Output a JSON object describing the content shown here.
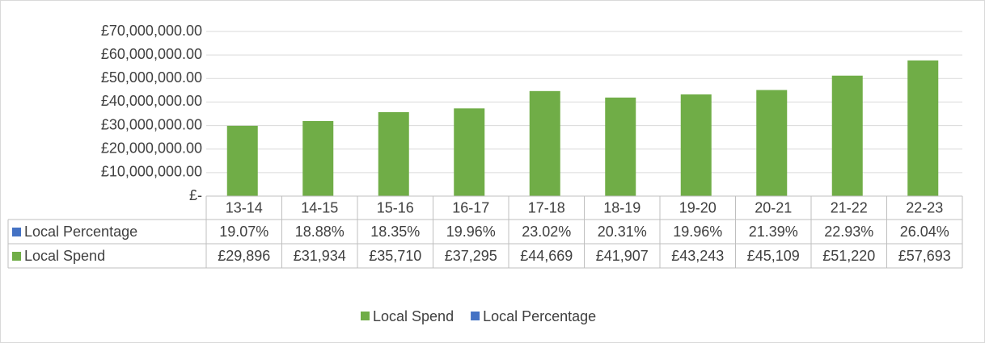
{
  "chart_data": {
    "type": "bar",
    "categories": [
      "13-14",
      "14-15",
      "15-16",
      "16-17",
      "17-18",
      "18-19",
      "19-20",
      "20-21",
      "21-22",
      "22-23"
    ],
    "series": [
      {
        "name": "Local Percentage",
        "color": "#4472c4",
        "values": [
          19.07,
          18.88,
          18.35,
          19.96,
          23.02,
          20.31,
          19.96,
          21.39,
          22.93,
          26.04
        ],
        "value_labels": [
          "19.07%",
          "18.88%",
          "18.35%",
          "19.96%",
          "23.02%",
          "20.31%",
          "19.96%",
          "21.39%",
          "22.93%",
          "26.04%"
        ]
      },
      {
        "name": "Local Spend",
        "color": "#70ad47",
        "values": [
          29896000,
          31934000,
          35710000,
          37295000,
          44669000,
          41907000,
          43243000,
          45109000,
          51220000,
          57693000
        ],
        "value_labels": [
          "£29,896",
          "£31,934",
          "£35,710",
          "£37,295",
          "£44,669",
          "£41,907",
          "£43,243",
          "£45,109",
          "£51,220",
          "£57,693"
        ]
      }
    ],
    "ylim": [
      0,
      70000000
    ],
    "yticks": [
      {
        "value": 0,
        "label": "£-"
      },
      {
        "value": 10000000,
        "label": "£10,000,000.00"
      },
      {
        "value": 20000000,
        "label": "£20,000,000.00"
      },
      {
        "value": 30000000,
        "label": "£30,000,000.00"
      },
      {
        "value": 40000000,
        "label": "£40,000,000.00"
      },
      {
        "value": 50000000,
        "label": "£50,000,000.00"
      },
      {
        "value": 60000000,
        "label": "£60,000,000.00"
      },
      {
        "value": 70000000,
        "label": "£70,000,000.00"
      }
    ],
    "grid": true,
    "legend": "bottom"
  }
}
